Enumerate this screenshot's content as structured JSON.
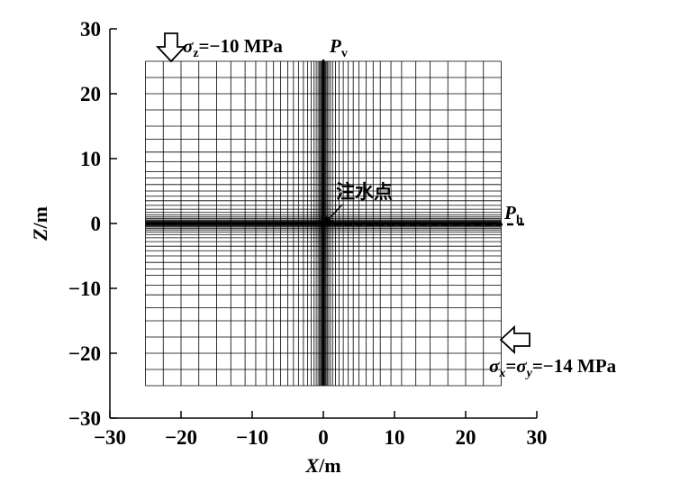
{
  "figure": {
    "x_axis": {
      "title_var": "X",
      "title_unit": "/m",
      "range": [
        -30,
        30
      ],
      "ticks": [
        -30,
        -20,
        -10,
        0,
        10,
        20,
        30
      ],
      "tick_labels": [
        "−30",
        "−20",
        "−10",
        "0",
        "10",
        "20",
        "30"
      ]
    },
    "z_axis": {
      "title_var": "Z",
      "title_unit": "/m",
      "range": [
        -30,
        30
      ],
      "ticks": [
        -30,
        -20,
        -10,
        0,
        10,
        20,
        30
      ],
      "tick_labels": [
        "−30",
        "−20",
        "−10",
        "0",
        "10",
        "20",
        "30"
      ]
    },
    "mesh": {
      "extent": [
        -25,
        25
      ],
      "lines": [
        -25,
        -22.5,
        -20,
        -17.5,
        -15,
        -13,
        -11,
        -9.5,
        -8,
        -7,
        -6,
        -5,
        -4.2,
        -3.5,
        -2.8,
        -2.2,
        -1.7,
        -1.3,
        -1.0,
        -0.75,
        -0.55,
        -0.4,
        -0.28,
        -0.18,
        -0.1,
        -0.04,
        0,
        0.04,
        0.1,
        0.18,
        0.28,
        0.4,
        0.55,
        0.75,
        1.0,
        1.3,
        1.7,
        2.2,
        2.8,
        3.5,
        4.2,
        5,
        6,
        7,
        8,
        9.5,
        11,
        13,
        15,
        17.5,
        20,
        22.5,
        25
      ]
    },
    "annotations": {
      "sigma_z": {
        "symbol": "σ",
        "sub": "z",
        "text": "=−10 MPa"
      },
      "p_v": {
        "symbol": "P",
        "sub": "v"
      },
      "p_h": {
        "symbol": "P",
        "sub": "h"
      },
      "sigma_xy": {
        "s1": "σ",
        "sub1": "x",
        "eq": "=",
        "s2": "σ",
        "sub2": "y",
        "text": "=−14 MPa"
      },
      "injection_point": {
        "label": "注水点",
        "x": 0,
        "z": 0
      }
    },
    "colors": {
      "line": "#000000",
      "background": "#ffffff"
    }
  }
}
